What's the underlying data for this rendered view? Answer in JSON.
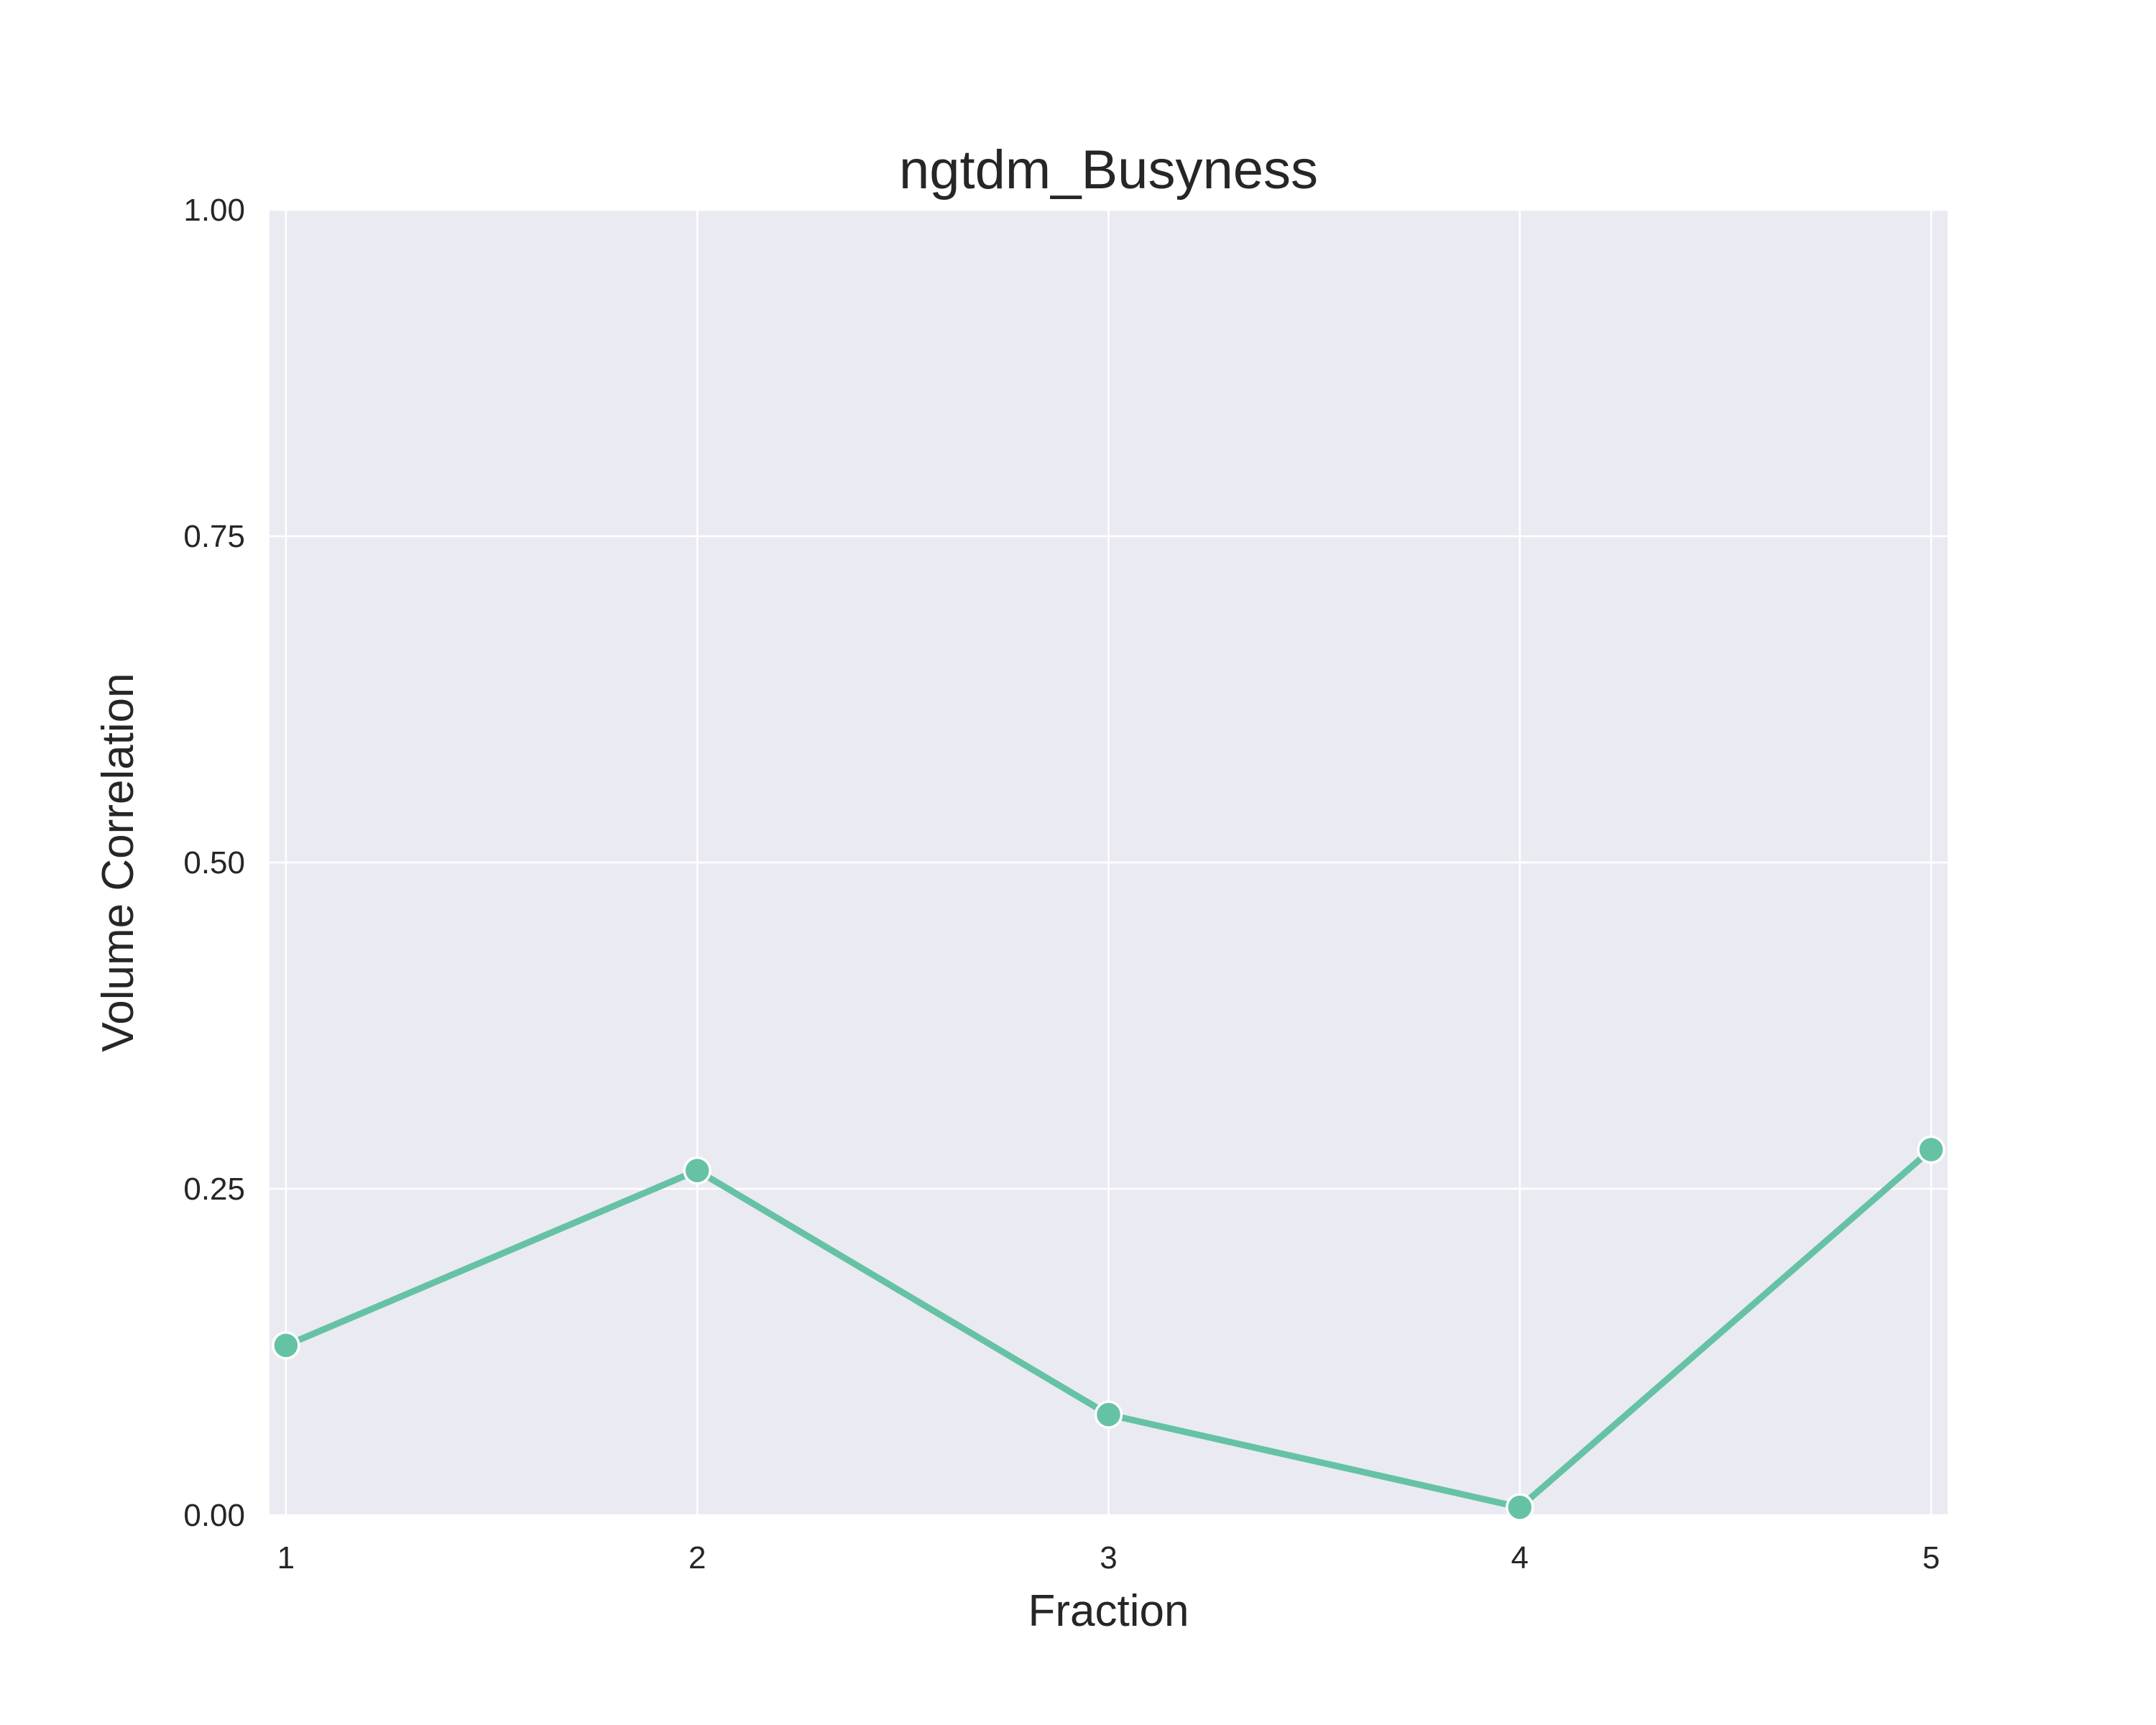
{
  "chart_data": {
    "type": "line",
    "title": "ngtdm_Busyness",
    "xlabel": "Fraction",
    "ylabel": "Volume Correlation",
    "x": [
      1,
      2,
      3,
      4,
      5
    ],
    "x_tick_labels": [
      "1",
      "2",
      "3",
      "4",
      "5"
    ],
    "y_tick_labels": [
      "0.00",
      "0.25",
      "0.50",
      "0.75",
      "1.00"
    ],
    "y_ticks": [
      0,
      0.25,
      0.5,
      0.75,
      1.0
    ],
    "xlim": [
      0.96,
      5.04
    ],
    "ylim": [
      0,
      1.0
    ],
    "series": [
      {
        "values": [
          0.13,
          0.264,
          0.077,
          0.006,
          0.28
        ],
        "color": "#66c2a5"
      }
    ],
    "grid": true,
    "plot_background": "#eaeaf2",
    "grid_color": "#ffffff",
    "legend": "none"
  }
}
